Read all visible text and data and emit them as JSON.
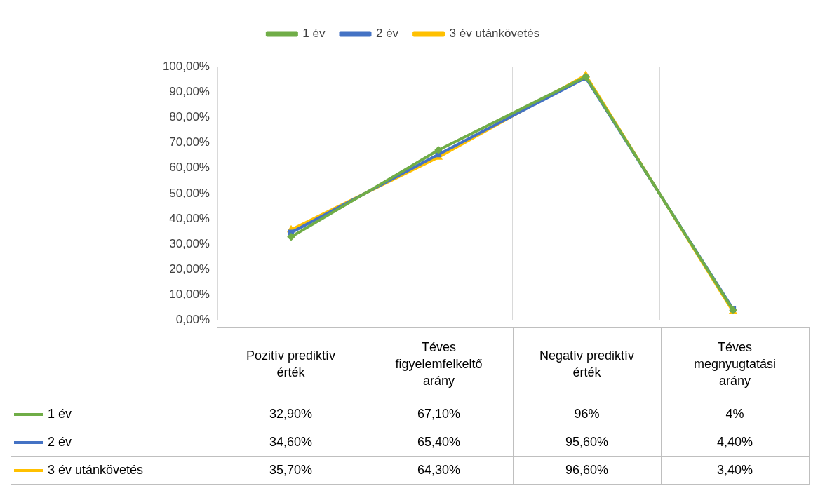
{
  "chart_data": {
    "type": "line",
    "categories": [
      "Pozitív prediktív érték",
      "Téves figyelemfelkeltő arány",
      "Negatív prediktív érték",
      "Téves megnyugtatási arány"
    ],
    "series": [
      {
        "name": "1 év",
        "color": "#70ad47",
        "marker": "diamond",
        "values": [
          32.9,
          67.1,
          96,
          4
        ],
        "value_labels": [
          "32,90%",
          "67,10%",
          "96%",
          "4%"
        ]
      },
      {
        "name": "2 év",
        "color": "#4472c4",
        "marker": "square",
        "values": [
          34.6,
          65.4,
          95.6,
          4.4
        ],
        "value_labels": [
          "34,60%",
          "65,40%",
          "95,60%",
          "4,40%"
        ]
      },
      {
        "name": "3 év utánkövetés",
        "color": "#ffc000",
        "marker": "triangle",
        "values": [
          35.7,
          64.3,
          96.6,
          3.4
        ],
        "value_labels": [
          "35,70%",
          "64,30%",
          "96,60%",
          "3,40%"
        ]
      }
    ],
    "ylim": [
      0,
      100
    ],
    "yticks": [
      {
        "value": 0,
        "label": "0,00%"
      },
      {
        "value": 10,
        "label": "10,00%"
      },
      {
        "value": 20,
        "label": "20,00%"
      },
      {
        "value": 30,
        "label": "30,00%"
      },
      {
        "value": 40,
        "label": "40,00%"
      },
      {
        "value": 50,
        "label": "50,00%"
      },
      {
        "value": 60,
        "label": "60,00%"
      },
      {
        "value": 70,
        "label": "70,00%"
      },
      {
        "value": 80,
        "label": "80,00%"
      },
      {
        "value": 90,
        "label": "90,00%"
      },
      {
        "value": 100,
        "label": "100,00%"
      }
    ],
    "grid": "x",
    "legend": "top"
  }
}
